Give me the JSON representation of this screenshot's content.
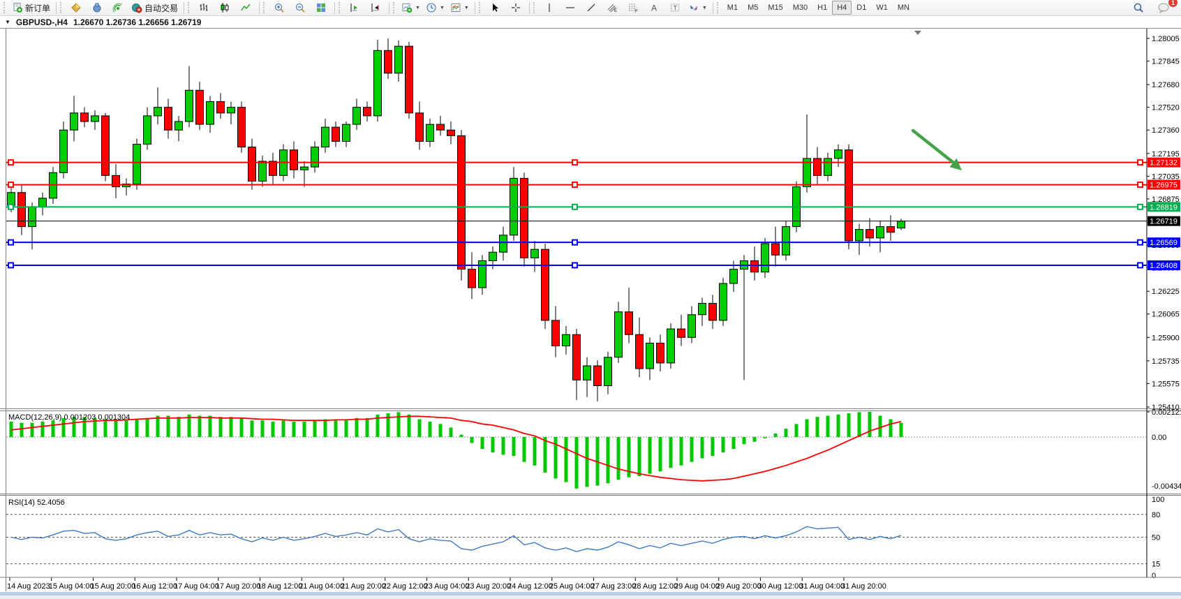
{
  "toolbar": {
    "new_order_label": "新订单",
    "autotrading_label": "自动交易",
    "dropdown_glyph": "▼",
    "groups": [
      {
        "items": [
          {
            "icon": "new-order",
            "label": "新订单",
            "name": "new-order-button"
          }
        ]
      },
      {
        "items": [
          {
            "icon": "metaeditor",
            "name": "metaeditor-button"
          },
          {
            "icon": "strategy-tester",
            "name": "strategy-tester-button"
          },
          {
            "icon": "signals",
            "name": "signals-button"
          },
          {
            "icon": "autotrading",
            "label": "自动交易",
            "name": "autotrading-button"
          }
        ]
      },
      {
        "items": [
          {
            "icon": "bar-chart",
            "name": "bar-chart-button"
          },
          {
            "icon": "candle-chart",
            "name": "candle-chart-button"
          },
          {
            "icon": "line-chart",
            "name": "line-chart-button"
          }
        ]
      },
      {
        "items": [
          {
            "icon": "zoom-in",
            "name": "zoom-in-button"
          },
          {
            "icon": "zoom-out",
            "name": "zoom-out-button"
          },
          {
            "icon": "tile-windows",
            "name": "tile-windows-button"
          }
        ]
      },
      {
        "items": [
          {
            "icon": "auto-scroll",
            "name": "auto-scroll-button"
          },
          {
            "icon": "chart-shift",
            "name": "chart-shift-button"
          }
        ]
      },
      {
        "items": [
          {
            "icon": "new-chart",
            "dropdown": true,
            "name": "new-chart-button"
          },
          {
            "icon": "profiles",
            "dropdown": true,
            "name": "profiles-button"
          },
          {
            "icon": "templates",
            "dropdown": true,
            "name": "templates-button"
          }
        ]
      },
      {
        "items": [
          {
            "icon": "cursor",
            "name": "cursor-button"
          },
          {
            "icon": "crosshair",
            "name": "crosshair-button"
          }
        ]
      },
      {
        "items": [
          {
            "icon": "vline",
            "name": "vertical-line-button"
          },
          {
            "icon": "hline",
            "name": "horizontal-line-button"
          },
          {
            "icon": "trendline",
            "name": "trendline-button"
          },
          {
            "icon": "channel",
            "name": "equidistant-channel-button"
          },
          {
            "icon": "fibonacci",
            "name": "fibonacci-button"
          },
          {
            "icon": "text",
            "name": "text-button"
          },
          {
            "icon": "text-label",
            "name": "text-label-button"
          },
          {
            "icon": "arrows",
            "dropdown": true,
            "name": "arrows-button"
          }
        ]
      }
    ],
    "timeframes": [
      "M1",
      "M5",
      "M15",
      "M30",
      "H1",
      "H4",
      "D1",
      "W1",
      "MN"
    ],
    "active_timeframe": "H4",
    "notification_badge": "1"
  },
  "title_bar": {
    "collapse_glyph": "▼",
    "symbol": "GBPUSD-,H4",
    "ohlc": "1.26670 1.26736 1.26656 1.26719"
  },
  "colors": {
    "bull": "#00CE00",
    "bear": "#FF0000",
    "wick": "#000000",
    "macd_hist": "#00C800",
    "macd_signal": "#FF0000",
    "rsi_line": "#3E7AC2",
    "line_red": "#FF0000",
    "line_green": "#00B050",
    "line_blue": "#0000FF",
    "line_black": "#000000",
    "arrow_green": "#44A348"
  },
  "price_axis": {
    "ticks": [
      "1.28005",
      "1.27845",
      "1.27680",
      "1.27520",
      "1.27360",
      "1.27195",
      "1.27035",
      "1.26875",
      "1.26710",
      "1.26550",
      "1.26390",
      "1.26225",
      "1.26065",
      "1.25900",
      "1.25735",
      "1.25575",
      "1.25410"
    ]
  },
  "hlines": [
    {
      "price": 1.27132,
      "label": "1.27132",
      "color": "line_red"
    },
    {
      "price": 1.26975,
      "label": "1.26975",
      "color": "line_red"
    },
    {
      "price": 1.26819,
      "label": "1.26819",
      "color": "line_green"
    },
    {
      "price": 1.26569,
      "label": "1.26569",
      "color": "line_blue"
    },
    {
      "price": 1.26408,
      "label": "1.26408",
      "color": "line_blue"
    }
  ],
  "current_price": {
    "value": 1.26719,
    "label": "1.26719"
  },
  "indicators": {
    "macd": {
      "name": "MACD(12,26,9) 0.001203 0.001304",
      "scale_max_label": "0.002121",
      "scale_zero_label": "0.00",
      "scale_min_label": "-0.004348"
    },
    "rsi": {
      "name": "RSI(14) 52.4056",
      "level_labels": [
        "100",
        "80",
        "50",
        "15",
        "0"
      ],
      "levels": [
        100,
        80,
        50,
        15,
        0
      ],
      "dashed_levels": [
        80,
        50,
        15
      ]
    }
  },
  "time_axis": [
    "14 Aug 2023",
    "15 Aug 04:00",
    "15 Aug 20:00",
    "16 Aug 12:00",
    "17 Aug 04:00",
    "17 Aug 20:00",
    "18 Aug 12:00",
    "21 Aug 04:00",
    "21 Aug 20:00",
    "22 Aug 12:00",
    "23 Aug 04:00",
    "23 Aug 20:00",
    "24 Aug 12:00",
    "25 Aug 04:00",
    "27 Aug 23:00",
    "28 Aug 12:00",
    "29 Aug 04:00",
    "29 Aug 20:00",
    "30 Aug 12:00",
    "31 Aug 04:00",
    "31 Aug 20:00"
  ],
  "chart_data": {
    "type": "candlestick",
    "symbol": "GBPUSD-",
    "period": "H4",
    "price_max": 1.28005,
    "price_min": 1.2541,
    "candles": [
      [
        1.2683,
        1.2695,
        1.2678,
        1.2692
      ],
      [
        1.2692,
        1.2697,
        1.2662,
        1.2668
      ],
      [
        1.2668,
        1.2685,
        1.2652,
        1.2682
      ],
      [
        1.2682,
        1.2692,
        1.2676,
        1.2688
      ],
      [
        1.2688,
        1.271,
        1.2684,
        1.2706
      ],
      [
        1.2706,
        1.2742,
        1.2702,
        1.2736
      ],
      [
        1.2736,
        1.276,
        1.2728,
        1.2748
      ],
      [
        1.2748,
        1.2752,
        1.2738,
        1.2742
      ],
      [
        1.2742,
        1.275,
        1.2736,
        1.2746
      ],
      [
        1.2746,
        1.2748,
        1.27,
        1.2704
      ],
      [
        1.2704,
        1.2712,
        1.2688,
        1.2696
      ],
      [
        1.2696,
        1.2702,
        1.269,
        1.2698
      ],
      [
        1.2698,
        1.273,
        1.2694,
        1.2726
      ],
      [
        1.2726,
        1.2752,
        1.2722,
        1.2746
      ],
      [
        1.2746,
        1.2766,
        1.274,
        1.2752
      ],
      [
        1.2752,
        1.2758,
        1.273,
        1.2736
      ],
      [
        1.2736,
        1.2746,
        1.2728,
        1.2742
      ],
      [
        1.2742,
        1.2781,
        1.2738,
        1.2764
      ],
      [
        1.2764,
        1.277,
        1.2736,
        1.274
      ],
      [
        1.274,
        1.276,
        1.2734,
        1.2756
      ],
      [
        1.2756,
        1.2762,
        1.2744,
        1.2748
      ],
      [
        1.2748,
        1.2756,
        1.274,
        1.2752
      ],
      [
        1.2752,
        1.2756,
        1.272,
        1.2724
      ],
      [
        1.2724,
        1.273,
        1.2694,
        1.27
      ],
      [
        1.27,
        1.2718,
        1.2696,
        1.2714
      ],
      [
        1.2714,
        1.272,
        1.2698,
        1.2704
      ],
      [
        1.2704,
        1.2726,
        1.27,
        1.2722
      ],
      [
        1.2722,
        1.2728,
        1.2702,
        1.2708
      ],
      [
        1.2708,
        1.2714,
        1.2696,
        1.271
      ],
      [
        1.271,
        1.2728,
        1.2706,
        1.2724
      ],
      [
        1.2724,
        1.2744,
        1.272,
        1.2738
      ],
      [
        1.2738,
        1.2742,
        1.2724,
        1.2728
      ],
      [
        1.2728,
        1.2742,
        1.2724,
        1.274
      ],
      [
        1.274,
        1.2758,
        1.2736,
        1.2752
      ],
      [
        1.2752,
        1.2756,
        1.2742,
        1.2746
      ],
      [
        1.2746,
        1.27995,
        1.2742,
        1.2792
      ],
      [
        1.2792,
        1.28005,
        1.2772,
        1.2776
      ],
      [
        1.2776,
        1.2799,
        1.277,
        1.2795
      ],
      [
        1.2795,
        1.2798,
        1.2744,
        1.2748
      ],
      [
        1.2748,
        1.2756,
        1.2722,
        1.2728
      ],
      [
        1.2728,
        1.2744,
        1.2724,
        1.274
      ],
      [
        1.274,
        1.2746,
        1.2732,
        1.2736
      ],
      [
        1.2736,
        1.2742,
        1.2726,
        1.2732
      ],
      [
        1.2732,
        1.2736,
        1.263,
        1.2638
      ],
      [
        1.2638,
        1.265,
        1.2617,
        1.2625
      ],
      [
        1.2625,
        1.2648,
        1.262,
        1.2644
      ],
      [
        1.2644,
        1.2654,
        1.2638,
        1.265
      ],
      [
        1.265,
        1.2668,
        1.2644,
        1.2662
      ],
      [
        1.2662,
        1.271,
        1.2658,
        1.2702
      ],
      [
        1.2702,
        1.2706,
        1.264,
        1.2646
      ],
      [
        1.2646,
        1.2658,
        1.2636,
        1.2652
      ],
      [
        1.2652,
        1.2656,
        1.2596,
        1.2602
      ],
      [
        1.2602,
        1.2612,
        1.2576,
        1.2584
      ],
      [
        1.2584,
        1.2598,
        1.2578,
        1.2592
      ],
      [
        1.2592,
        1.2596,
        1.2546,
        1.256
      ],
      [
        1.256,
        1.2576,
        1.2548,
        1.257
      ],
      [
        1.257,
        1.2574,
        1.2545,
        1.2556
      ],
      [
        1.2556,
        1.258,
        1.255,
        1.2576
      ],
      [
        1.2576,
        1.2615,
        1.2572,
        1.2608
      ],
      [
        1.2608,
        1.2625,
        1.2586,
        1.2592
      ],
      [
        1.2592,
        1.2604,
        1.2562,
        1.2568
      ],
      [
        1.2568,
        1.259,
        1.256,
        1.2586
      ],
      [
        1.2586,
        1.2592,
        1.2566,
        1.2572
      ],
      [
        1.2572,
        1.26,
        1.2568,
        1.2596
      ],
      [
        1.2596,
        1.2606,
        1.2584,
        1.259
      ],
      [
        1.259,
        1.2612,
        1.2586,
        1.2606
      ],
      [
        1.2606,
        1.2618,
        1.2598,
        1.2614
      ],
      [
        1.2614,
        1.262,
        1.2596,
        1.2602
      ],
      [
        1.2602,
        1.2632,
        1.2598,
        1.2628
      ],
      [
        1.2628,
        1.2644,
        1.2622,
        1.2638
      ],
      [
        1.2638,
        1.2648,
        1.256,
        1.2644
      ],
      [
        1.2644,
        1.2654,
        1.263,
        1.2636
      ],
      [
        1.2636,
        1.266,
        1.2632,
        1.2656
      ],
      [
        1.2656,
        1.2668,
        1.264,
        1.2648
      ],
      [
        1.2648,
        1.2672,
        1.2644,
        1.2668
      ],
      [
        1.2668,
        1.27,
        1.2664,
        1.2696
      ],
      [
        1.2696,
        1.2747,
        1.2692,
        1.2716
      ],
      [
        1.2716,
        1.2724,
        1.2698,
        1.2704
      ],
      [
        1.2704,
        1.272,
        1.27,
        1.2716
      ],
      [
        1.2716,
        1.2726,
        1.271,
        1.2722
      ],
      [
        1.2722,
        1.2726,
        1.2652,
        1.2658
      ],
      [
        1.2658,
        1.267,
        1.2648,
        1.2666
      ],
      [
        1.2666,
        1.2674,
        1.2654,
        1.266
      ],
      [
        1.266,
        1.2672,
        1.265,
        1.2668
      ],
      [
        1.2668,
        1.2676,
        1.2658,
        1.2664
      ],
      [
        1.2667,
        1.26736,
        1.26656,
        1.26719
      ]
    ],
    "macd": {
      "scale_max": 0.002121,
      "scale_min": -0.004348,
      "histogram": [
        0.0013,
        0.0012,
        0.0012,
        0.0013,
        0.0014,
        0.0016,
        0.0017,
        0.0017,
        0.0016,
        0.0015,
        0.0014,
        0.0014,
        0.0015,
        0.0016,
        0.0018,
        0.0018,
        0.0017,
        0.0019,
        0.0018,
        0.0018,
        0.0017,
        0.0017,
        0.0016,
        0.0014,
        0.0014,
        0.0013,
        0.0014,
        0.0013,
        0.0013,
        0.0014,
        0.0015,
        0.0014,
        0.0014,
        0.0016,
        0.0016,
        0.0019,
        0.002,
        0.0021,
        0.0019,
        0.0015,
        0.0013,
        0.0011,
        0.0008,
        0.0002,
        -0.0005,
        -0.001,
        -0.0013,
        -0.0015,
        -0.0016,
        -0.0021,
        -0.0024,
        -0.003,
        -0.0035,
        -0.0038,
        -0.004348,
        -0.0042,
        -0.0041,
        -0.0039,
        -0.0036,
        -0.0034,
        -0.0033,
        -0.0031,
        -0.0029,
        -0.0026,
        -0.0024,
        -0.0021,
        -0.0018,
        -0.0016,
        -0.0013,
        -0.001,
        -0.0006,
        -0.0004,
        -0.0001,
        0.0003,
        0.0007,
        0.0011,
        0.0015,
        0.0017,
        0.0018,
        0.0019,
        0.002,
        0.0021,
        0.002121,
        0.0018,
        0.0015,
        0.001203
      ],
      "signal": [
        0.0006,
        0.0007,
        0.0008,
        0.0009,
        0.001,
        0.0011,
        0.0012,
        0.0013,
        0.00135,
        0.0014,
        0.0014,
        0.00145,
        0.0015,
        0.00155,
        0.0016,
        0.0016,
        0.0016,
        0.00165,
        0.00165,
        0.00165,
        0.0016,
        0.0016,
        0.0016,
        0.00155,
        0.0015,
        0.0015,
        0.00145,
        0.0014,
        0.0014,
        0.0014,
        0.0014,
        0.00145,
        0.00145,
        0.0015,
        0.0015,
        0.0016,
        0.00165,
        0.0017,
        0.00175,
        0.00175,
        0.0017,
        0.00165,
        0.0016,
        0.0014,
        0.0013,
        0.0011,
        0.001,
        0.0008,
        0.0006,
        0.0003,
        0.0001,
        -0.0003,
        -0.0006,
        -0.001,
        -0.0014,
        -0.0018,
        -0.0021,
        -0.0024,
        -0.0027,
        -0.0029,
        -0.0031,
        -0.00325,
        -0.0034,
        -0.0035,
        -0.0036,
        -0.00365,
        -0.0037,
        -0.00365,
        -0.0036,
        -0.0035,
        -0.0033,
        -0.0031,
        -0.0029,
        -0.00265,
        -0.0024,
        -0.0021,
        -0.0018,
        -0.00145,
        -0.0011,
        -0.0007,
        -0.0003,
        0.0001,
        0.0005,
        0.0008,
        0.0011,
        0.001304
      ]
    },
    "rsi_values": [
      50,
      47,
      50,
      49,
      53,
      58,
      59,
      55,
      56,
      48,
      46,
      48,
      53,
      56,
      58,
      51,
      53,
      59,
      53,
      56,
      53,
      54,
      48,
      44,
      49,
      46,
      50,
      46,
      48,
      51,
      55,
      51,
      53,
      56,
      53,
      61,
      57,
      60,
      48,
      44,
      48,
      46,
      45,
      35,
      33,
      38,
      41,
      44,
      52,
      40,
      43,
      36,
      33,
      36,
      31,
      35,
      33,
      37,
      44,
      40,
      35,
      39,
      36,
      42,
      39,
      42,
      45,
      42,
      47,
      50,
      51,
      48,
      52,
      49,
      52,
      57,
      64,
      61,
      62,
      63,
      47,
      50,
      47,
      51,
      48,
      52.4
    ]
  }
}
